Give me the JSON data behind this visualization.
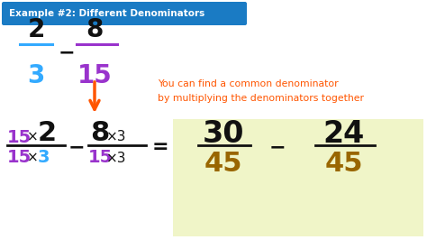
{
  "bg_color": "#ffffff",
  "header_bg": "#1a7bc4",
  "header_text": "Example #2: Different Denominators",
  "header_text_color": "#ffffff",
  "result_bg": "#f0f5c8",
  "orange": "#ff5500",
  "purple": "#9933cc",
  "blue": "#33aaff",
  "black": "#111111",
  "brown": "#996600",
  "annotation1": "You can find a common denominator",
  "annotation2": "by multiplying the denominators together",
  "fig_w": 4.74,
  "fig_h": 2.66,
  "dpi": 100
}
